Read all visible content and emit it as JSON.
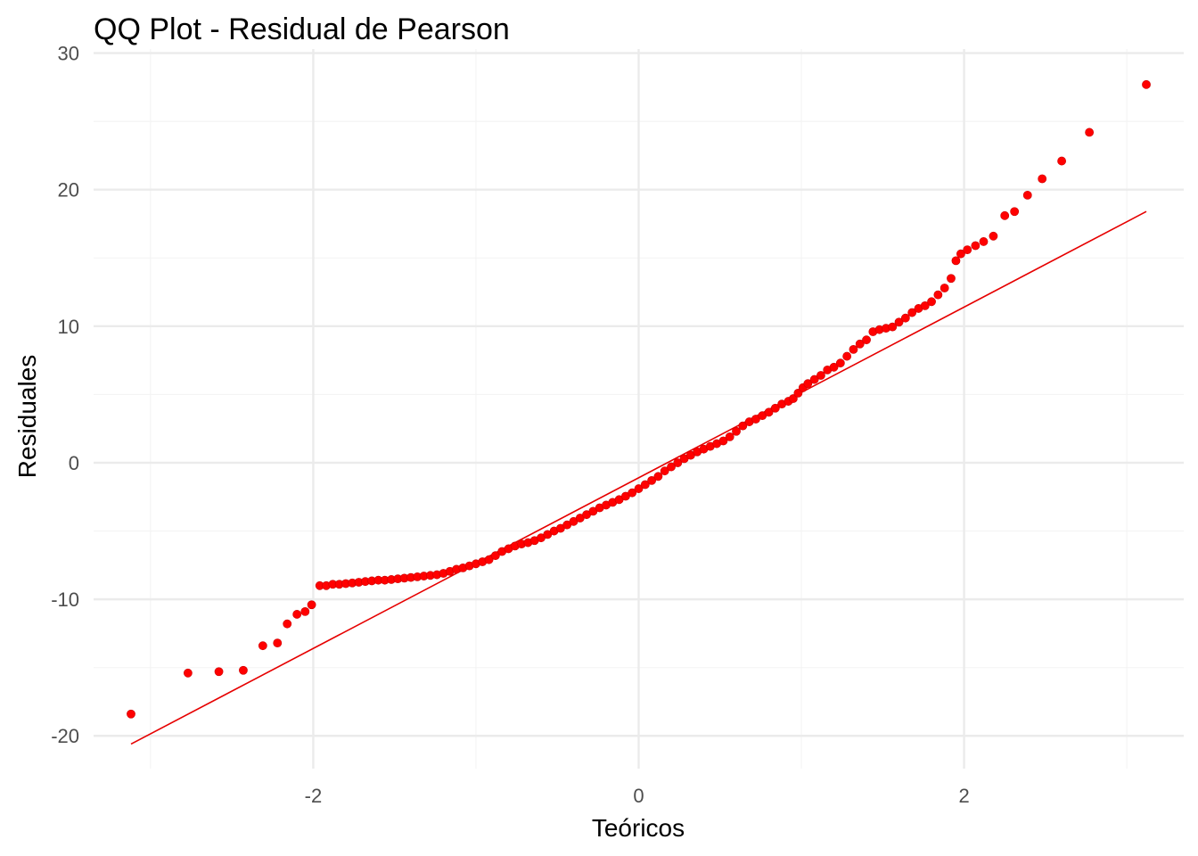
{
  "chart_data": {
    "type": "scatter",
    "title": "QQ Plot - Residual de Pearson",
    "xlabel": "Teóricos",
    "ylabel": "Residuales",
    "xlim": [
      -3.35,
      3.35
    ],
    "ylim": [
      -22.4,
      30.3
    ],
    "x_ticks": [
      -2,
      0,
      2
    ],
    "x_tick_labels": [
      "-2",
      "0",
      "2"
    ],
    "y_ticks": [
      -20,
      -10,
      0,
      10,
      20,
      30
    ],
    "y_tick_labels": [
      "-20",
      "-10",
      "0",
      "10",
      "20",
      "30"
    ],
    "grid": true,
    "legend": "none",
    "point_color": "#ff0000",
    "line_color": "#e60000",
    "grid_major_color": "#ebebeb",
    "grid_minor_color": "#f4f4f4",
    "reference_line": {
      "x": [
        -3.12,
        3.12
      ],
      "y": [
        -20.6,
        18.4
      ]
    },
    "points": [
      [
        -3.12,
        -18.4
      ],
      [
        -2.77,
        -15.4
      ],
      [
        -2.58,
        -15.3
      ],
      [
        -2.43,
        -15.2
      ],
      [
        -2.31,
        -13.4
      ],
      [
        -2.22,
        -13.2
      ],
      [
        -2.16,
        -11.8
      ],
      [
        -2.1,
        -11.1
      ],
      [
        -2.05,
        -10.9
      ],
      [
        -2.01,
        -10.4
      ],
      [
        -1.96,
        -9.0
      ],
      [
        -1.92,
        -9.0
      ],
      [
        -1.88,
        -8.9
      ],
      [
        -1.84,
        -8.9
      ],
      [
        -1.8,
        -8.85
      ],
      [
        -1.76,
        -8.8
      ],
      [
        -1.72,
        -8.75
      ],
      [
        -1.68,
        -8.7
      ],
      [
        -1.64,
        -8.65
      ],
      [
        -1.6,
        -8.6
      ],
      [
        -1.56,
        -8.6
      ],
      [
        -1.52,
        -8.55
      ],
      [
        -1.48,
        -8.5
      ],
      [
        -1.44,
        -8.45
      ],
      [
        -1.4,
        -8.4
      ],
      [
        -1.36,
        -8.35
      ],
      [
        -1.32,
        -8.3
      ],
      [
        -1.28,
        -8.25
      ],
      [
        -1.24,
        -8.2
      ],
      [
        -1.2,
        -8.1
      ],
      [
        -1.16,
        -7.95
      ],
      [
        -1.12,
        -7.8
      ],
      [
        -1.08,
        -7.7
      ],
      [
        -1.04,
        -7.55
      ],
      [
        -1.0,
        -7.4
      ],
      [
        -0.96,
        -7.25
      ],
      [
        -0.92,
        -7.1
      ],
      [
        -0.88,
        -6.8
      ],
      [
        -0.84,
        -6.5
      ],
      [
        -0.8,
        -6.3
      ],
      [
        -0.76,
        -6.1
      ],
      [
        -0.72,
        -5.95
      ],
      [
        -0.68,
        -5.85
      ],
      [
        -0.64,
        -5.7
      ],
      [
        -0.6,
        -5.5
      ],
      [
        -0.56,
        -5.25
      ],
      [
        -0.52,
        -5.0
      ],
      [
        -0.48,
        -4.8
      ],
      [
        -0.44,
        -4.55
      ],
      [
        -0.4,
        -4.3
      ],
      [
        -0.36,
        -4.05
      ],
      [
        -0.32,
        -3.8
      ],
      [
        -0.28,
        -3.55
      ],
      [
        -0.24,
        -3.3
      ],
      [
        -0.2,
        -3.1
      ],
      [
        -0.16,
        -2.9
      ],
      [
        -0.12,
        -2.7
      ],
      [
        -0.08,
        -2.45
      ],
      [
        -0.04,
        -2.2
      ],
      [
        0.0,
        -1.9
      ],
      [
        0.04,
        -1.6
      ],
      [
        0.08,
        -1.3
      ],
      [
        0.12,
        -1.0
      ],
      [
        0.16,
        -0.6
      ],
      [
        0.2,
        -0.3
      ],
      [
        0.24,
        0.0
      ],
      [
        0.28,
        0.3
      ],
      [
        0.32,
        0.55
      ],
      [
        0.36,
        0.8
      ],
      [
        0.4,
        1.0
      ],
      [
        0.44,
        1.2
      ],
      [
        0.48,
        1.4
      ],
      [
        0.52,
        1.6
      ],
      [
        0.56,
        1.9
      ],
      [
        0.6,
        2.3
      ],
      [
        0.64,
        2.7
      ],
      [
        0.68,
        3.0
      ],
      [
        0.72,
        3.2
      ],
      [
        0.76,
        3.45
      ],
      [
        0.8,
        3.7
      ],
      [
        0.84,
        4.0
      ],
      [
        0.88,
        4.3
      ],
      [
        0.92,
        4.5
      ],
      [
        0.95,
        4.7
      ],
      [
        0.98,
        5.1
      ],
      [
        1.01,
        5.5
      ],
      [
        1.04,
        5.8
      ],
      [
        1.08,
        6.1
      ],
      [
        1.12,
        6.4
      ],
      [
        1.16,
        6.8
      ],
      [
        1.2,
        7.0
      ],
      [
        1.24,
        7.3
      ],
      [
        1.28,
        7.8
      ],
      [
        1.32,
        8.3
      ],
      [
        1.36,
        8.7
      ],
      [
        1.4,
        9.0
      ],
      [
        1.44,
        9.6
      ],
      [
        1.48,
        9.75
      ],
      [
        1.52,
        9.85
      ],
      [
        1.56,
        9.95
      ],
      [
        1.6,
        10.3
      ],
      [
        1.64,
        10.6
      ],
      [
        1.68,
        11.0
      ],
      [
        1.72,
        11.3
      ],
      [
        1.76,
        11.5
      ],
      [
        1.8,
        11.8
      ],
      [
        1.84,
        12.3
      ],
      [
        1.88,
        12.8
      ],
      [
        1.92,
        13.5
      ],
      [
        1.95,
        14.8
      ],
      [
        1.98,
        15.3
      ],
      [
        2.02,
        15.6
      ],
      [
        2.07,
        15.9
      ],
      [
        2.12,
        16.2
      ],
      [
        2.18,
        16.6
      ],
      [
        2.25,
        18.1
      ],
      [
        2.31,
        18.4
      ],
      [
        2.39,
        19.6
      ],
      [
        2.48,
        20.8
      ],
      [
        2.6,
        22.1
      ],
      [
        2.77,
        24.2
      ],
      [
        3.12,
        27.7
      ]
    ]
  }
}
